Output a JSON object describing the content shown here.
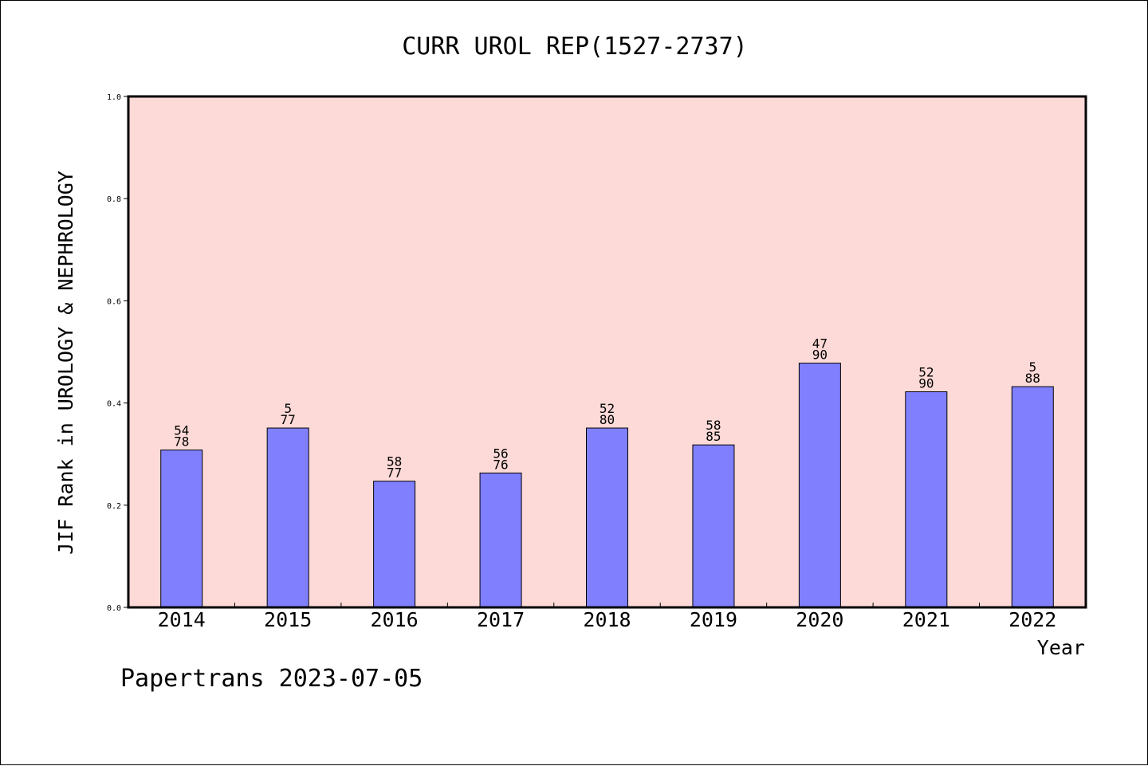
{
  "chart_data": {
    "type": "bar",
    "title": "CURR UROL REP(1527-2737)",
    "xlabel": "Year",
    "ylabel": "JIF Rank in UROLOGY & NEPHROLOGY",
    "ylim": [
      0,
      1.0
    ],
    "yticks": [
      "0.0",
      "0.2",
      "0.4",
      "0.6",
      "0.8",
      "1.0"
    ],
    "categories": [
      "2014",
      "2015",
      "2016",
      "2017",
      "2018",
      "2019",
      "2020",
      "2021",
      "2022"
    ],
    "values": [
      0.308,
      0.351,
      0.247,
      0.263,
      0.351,
      0.318,
      0.478,
      0.422,
      0.432
    ],
    "labels_top": [
      "54",
      "5",
      "58",
      "56",
      "52",
      "58",
      "47",
      "52",
      "5"
    ],
    "labels_bottom": [
      "78",
      "77",
      "77",
      "76",
      "80",
      "85",
      "90",
      "90",
      "88"
    ],
    "grid": false,
    "colors": {
      "plot_bg": "#fddad7",
      "bar_fill": "#8080ff",
      "bar_edge": "#000000"
    }
  },
  "watermark": "Papertrans 2023-07-05"
}
